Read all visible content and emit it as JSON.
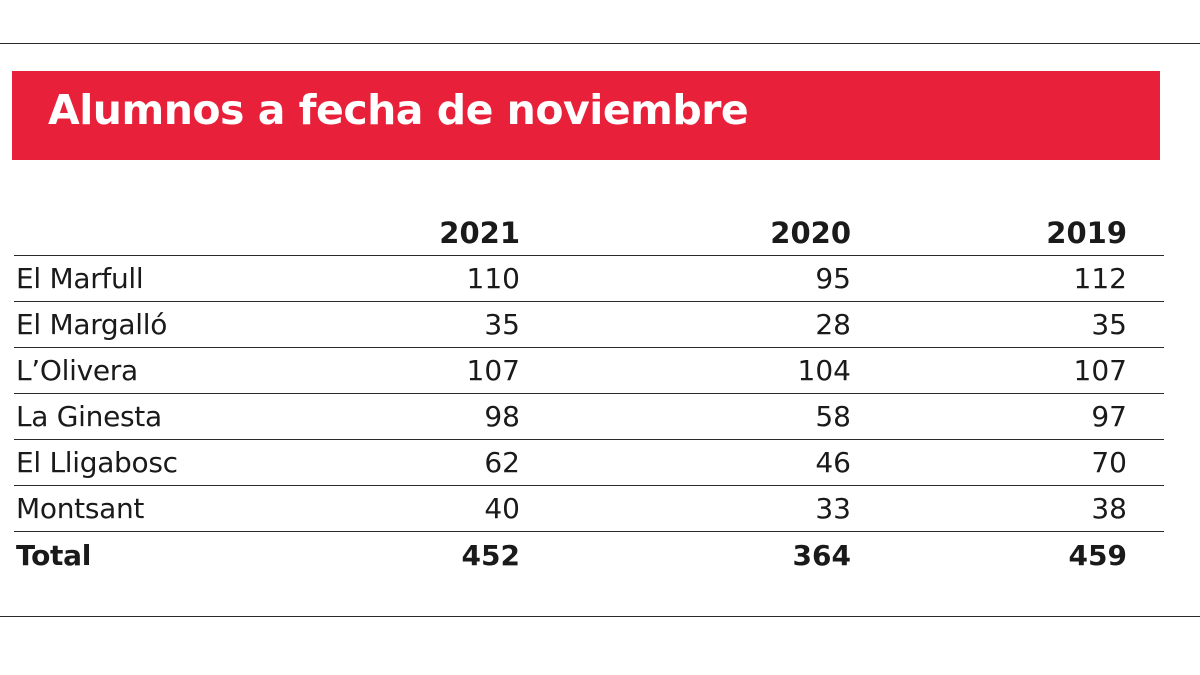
{
  "chart_data": {
    "type": "table",
    "title": "Alumnos a fecha de noviembre",
    "columns": [
      "2021",
      "2020",
      "2019"
    ],
    "rows": [
      {
        "label": "El Marfull",
        "values": [
          "110",
          "95",
          "112"
        ]
      },
      {
        "label": "El Margalló",
        "values": [
          "35",
          "28",
          "35"
        ]
      },
      {
        "label": "L’Olivera",
        "values": [
          "107",
          "104",
          "107"
        ]
      },
      {
        "label": "La Ginesta",
        "values": [
          "98",
          "58",
          "97"
        ]
      },
      {
        "label": "El Lligabosc",
        "values": [
          "62",
          "46",
          "70"
        ]
      },
      {
        "label": "Montsant",
        "values": [
          "40",
          "33",
          "38"
        ]
      }
    ],
    "total": {
      "label": "Total",
      "values": [
        "452",
        "364",
        "459"
      ]
    }
  },
  "colors": {
    "banner": "#e8203a",
    "banner_text": "#ffffff",
    "text": "#1a1a1a",
    "rules": "#2a2a2a"
  }
}
